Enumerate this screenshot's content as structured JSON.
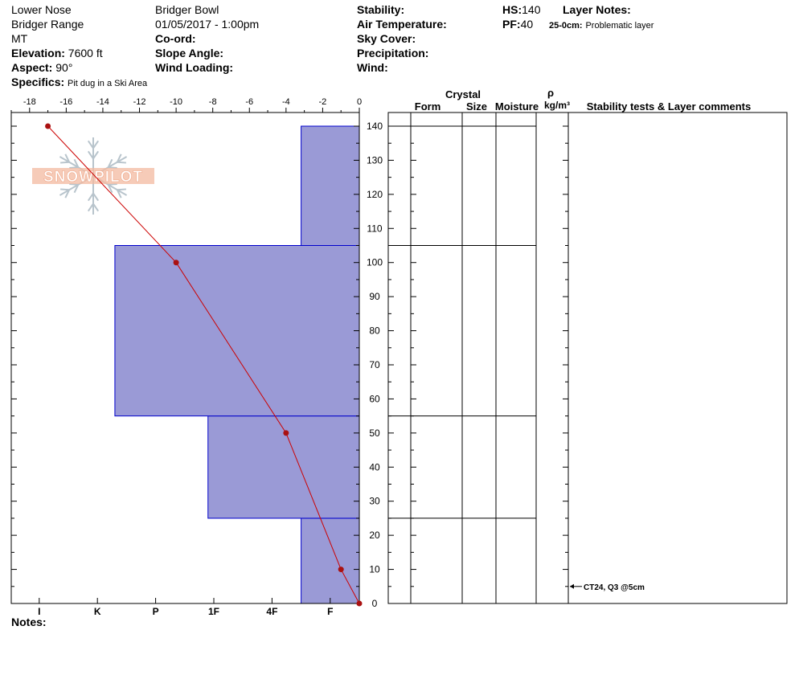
{
  "header": {
    "location": "Lower Nose",
    "range": "Bridger Range",
    "state": "MT",
    "elevation_label": "Elevation:",
    "elevation_value": "7600 ft",
    "aspect_label": "Aspect:",
    "aspect_value": "90°",
    "specifics_label": "Specifics:",
    "specifics_value": "Pit dug in a Ski Area",
    "area": "Bridger Bowl",
    "datetime": "01/05/2017 - 1:00pm",
    "coord_label": "Co-ord:",
    "slope_label": "Slope Angle:",
    "wind_loading_label": "Wind Loading:",
    "stability_label": "Stability:",
    "air_temp_label": "Air Temperature:",
    "sky_cover_label": "Sky Cover:",
    "precip_label": "Precipitation:",
    "wind_label": "Wind:",
    "hs_label": "HS:",
    "hs_value": "140",
    "pf_label": "PF:",
    "pf_value": "40",
    "layer_notes_label": "Layer Notes:",
    "layer_note_depth": "25-0cm:",
    "layer_note_text": "Problematic layer"
  },
  "notes_label": "Notes:",
  "logo_text": "SNOWPILOT",
  "columns": {
    "crystal": "Crystal",
    "form": "Form",
    "size": "Size",
    "moisture": "Moisture",
    "rho": "ρ",
    "density_unit": "kg/m³",
    "stability": "Stability tests & Layer comments"
  },
  "stability_test": {
    "depth": 5,
    "text": "CT24, Q3 @5cm"
  },
  "chart_data": {
    "type": "snow-profile",
    "temperature_axis": {
      "ticks": [
        -18,
        -16,
        -14,
        -12,
        -10,
        -8,
        -6,
        -4,
        -2,
        0
      ],
      "range": [
        -19,
        0
      ]
    },
    "height_axis": {
      "ticks": [
        0,
        10,
        20,
        30,
        40,
        50,
        60,
        70,
        80,
        90,
        100,
        110,
        120,
        130,
        140
      ],
      "range": [
        0,
        140
      ]
    },
    "hardness_labels": [
      "I",
      "K",
      "P",
      "1F",
      "4F",
      "F"
    ],
    "layers": [
      {
        "bottom": 0,
        "top": 25,
        "hardness_level": 2
      },
      {
        "bottom": 25,
        "top": 55,
        "hardness_level": 5.2
      },
      {
        "bottom": 55,
        "top": 105,
        "hardness_level": 8.4
      },
      {
        "bottom": 105,
        "top": 140,
        "hardness_level": 2
      }
    ],
    "temperature_profile": [
      {
        "height": 0,
        "temp": 0
      },
      {
        "height": 10,
        "temp": -1
      },
      {
        "height": 50,
        "temp": -4
      },
      {
        "height": 100,
        "temp": -10
      },
      {
        "height": 140,
        "temp": -17
      }
    ],
    "colors": {
      "layer_fill": "#9a9ad6",
      "layer_stroke": "#0000cc",
      "temp_line": "#cc0000",
      "temp_point": "#aa1111",
      "logo": "#f3b9a0"
    }
  }
}
